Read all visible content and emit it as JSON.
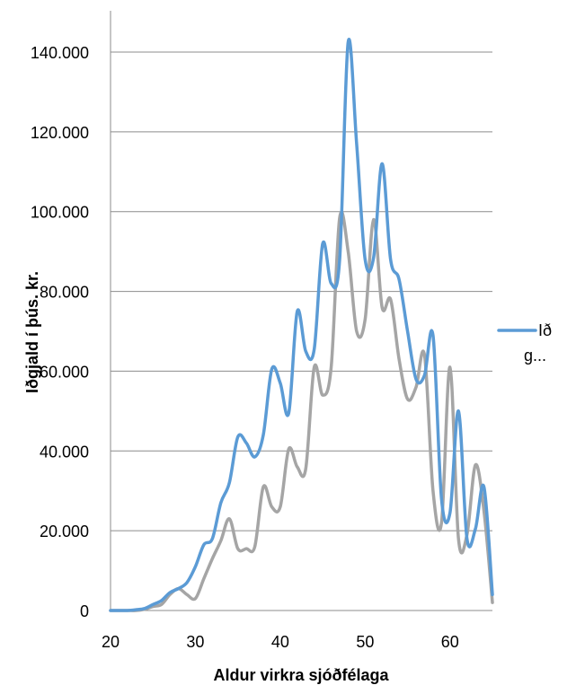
{
  "chart_data": {
    "type": "line",
    "title": "",
    "xlabel": "Aldur virkra sjóðfélaga",
    "ylabel": "Iðgjald í þús. kr.",
    "xlim": [
      20,
      65
    ],
    "ylim": [
      0,
      140000
    ],
    "x_ticks": [
      20,
      30,
      40,
      50,
      60
    ],
    "x_tick_labels": [
      "20",
      "30",
      "40",
      "50",
      "60"
    ],
    "y_ticks": [
      0,
      20000,
      40000,
      60000,
      80000,
      100000,
      120000,
      140000
    ],
    "y_tick_labels": [
      "0",
      "20.000",
      "40.000",
      "60.000",
      "80.000",
      "100.000",
      "120.000",
      "140.000"
    ],
    "grid": true,
    "legend_position": "right",
    "series": [
      {
        "name": "Ið g...",
        "color": "#5b9bd5",
        "x": [
          20,
          21,
          22,
          23,
          24,
          25,
          26,
          27,
          28,
          29,
          30,
          31,
          32,
          33,
          34,
          35,
          36,
          37,
          38,
          39,
          40,
          41,
          42,
          43,
          44,
          45,
          46,
          47,
          48,
          49,
          50,
          51,
          52,
          53,
          54,
          55,
          56,
          57,
          58,
          59,
          60,
          61,
          62,
          63,
          64,
          65
        ],
        "values": [
          0,
          0,
          0,
          200,
          500,
          1500,
          2500,
          4500,
          5500,
          7000,
          11000,
          16500,
          18000,
          27000,
          32000,
          43500,
          42000,
          38500,
          44000,
          60500,
          57000,
          49500,
          75000,
          65000,
          65500,
          92000,
          82000,
          88000,
          142500,
          117000,
          88000,
          88500,
          112000,
          88000,
          83000,
          70000,
          58000,
          59000,
          69000,
          28000,
          24500,
          50000,
          18000,
          20500,
          31000,
          4000
        ]
      },
      {
        "name": "",
        "color": "#a5a5a5",
        "x": [
          20,
          21,
          22,
          23,
          24,
          25,
          26,
          27,
          28,
          29,
          30,
          31,
          32,
          33,
          34,
          35,
          36,
          37,
          38,
          39,
          40,
          41,
          42,
          43,
          44,
          45,
          46,
          47,
          48,
          49,
          50,
          51,
          52,
          53,
          54,
          55,
          56,
          57,
          58,
          59,
          60,
          61,
          62,
          63,
          64,
          65
        ],
        "values": [
          0,
          0,
          0,
          0,
          300,
          1000,
          1500,
          4000,
          5500,
          4000,
          3000,
          8000,
          13000,
          17500,
          23000,
          15500,
          15500,
          16000,
          31000,
          26000,
          26000,
          40500,
          36000,
          35500,
          61000,
          54000,
          61000,
          98500,
          90000,
          70000,
          73000,
          98000,
          76000,
          78000,
          63000,
          53000,
          56000,
          64000,
          30000,
          22000,
          61000,
          18000,
          19000,
          36500,
          25000,
          2000
        ]
      }
    ]
  }
}
